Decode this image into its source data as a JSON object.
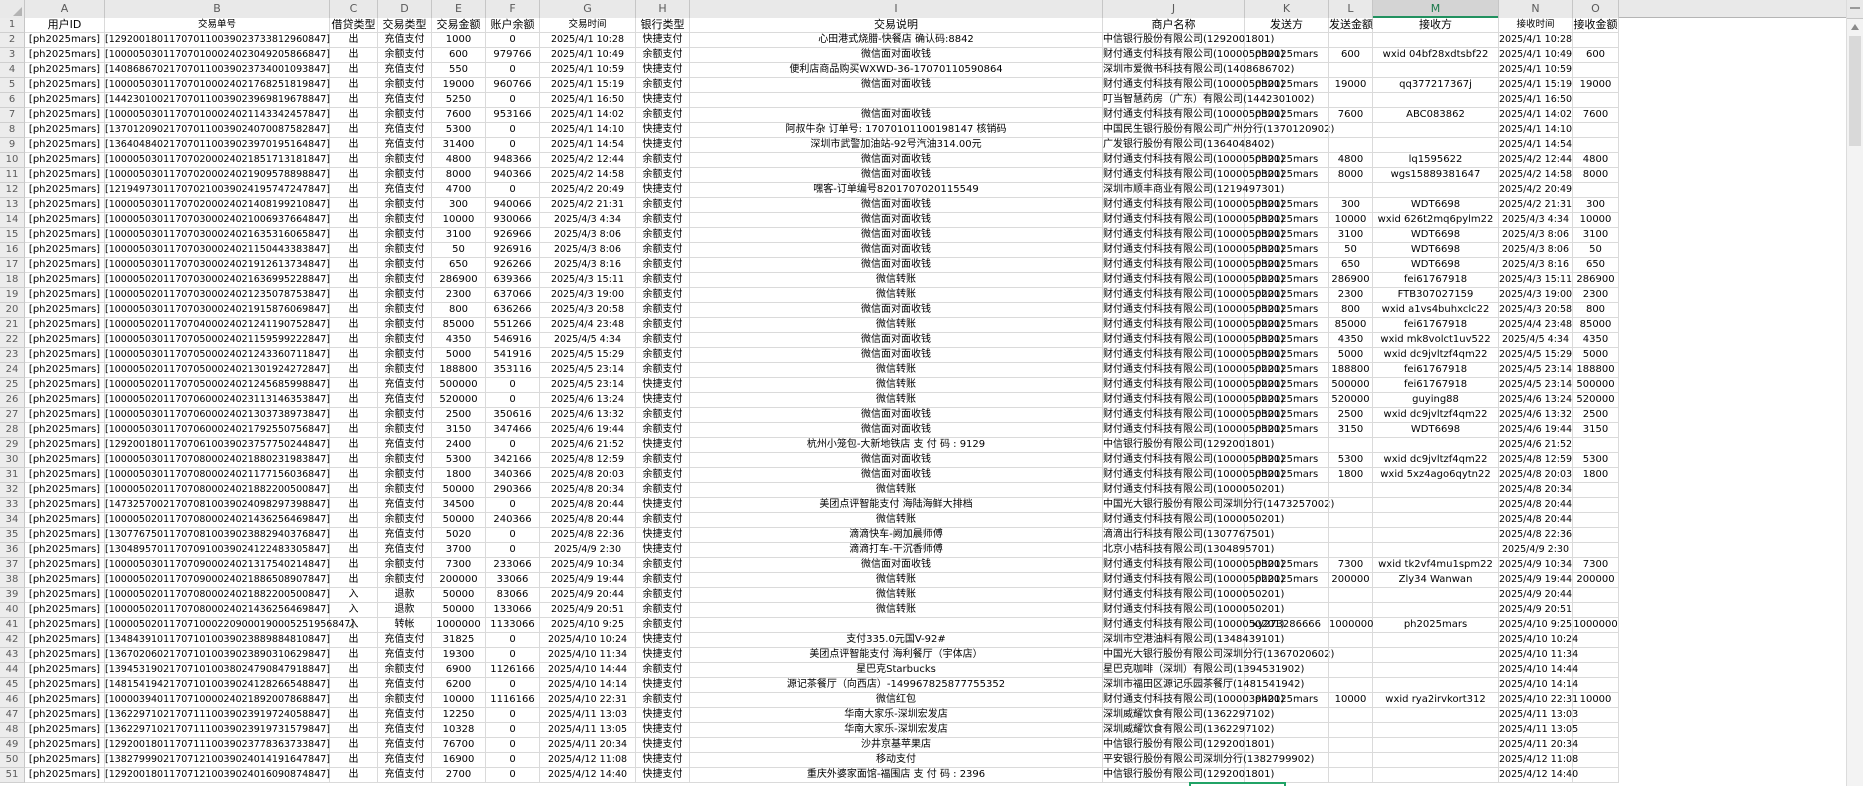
{
  "sheet": {
    "column_letters": [
      "A",
      "B",
      "C",
      "D",
      "E",
      "F",
      "G",
      "H",
      "I",
      "J",
      "K",
      "L",
      "M",
      "N",
      "O"
    ],
    "selected_column_letter": "M",
    "first_row_number": 1,
    "field_headers": [
      "用户ID",
      "交易单号",
      "借贷类型",
      "交易类型",
      "交易金额",
      "账户余额",
      "交易时间",
      "银行类型",
      "交易说明",
      "商户名称",
      "发送方",
      "发送金额",
      "接收方",
      "接收时间",
      "接收金额"
    ],
    "rows": [
      [
        "[ph2025mars]",
        "[129200180117070110039023733812960847]",
        "出",
        "充值支付",
        "1000",
        "0",
        "2025/4/1 10:28",
        "快捷支付",
        "心田港式烧腊-快餐店 确认码:8842",
        "中信银行股份有限公司(1292001801)",
        "",
        "",
        "",
        "2025/4/1 10:28",
        ""
      ],
      [
        "[ph2025mars]",
        "[100005030117070100024023049205866847]",
        "出",
        "余额支付",
        "600",
        "979766",
        "2025/4/1 10:49",
        "余额支付",
        "微信面对面收钱",
        "财付通支付科技有限公司(1000050301)",
        "ph2025mars",
        "600",
        "wxid 04bf28xdtsbf22",
        "2025/4/1 10:49",
        "600"
      ],
      [
        "[ph2025mars]",
        "[140868670217070110039023734001093847]",
        "出",
        "充值支付",
        "550",
        "0",
        "2025/4/1 10:59",
        "快捷支付",
        "便利店商品购买WXWD-36-17070110590864",
        "深圳市爱微书科技有限公司(1408686702)",
        "",
        "",
        "",
        "2025/4/1 10:59",
        ""
      ],
      [
        "[ph2025mars]",
        "[100005030117070100024021768251819847]",
        "出",
        "余额支付",
        "19000",
        "960766",
        "2025/4/1 15:19",
        "余额支付",
        "微信面对面收钱",
        "财付通支付科技有限公司(1000050301)",
        "ph2025mars",
        "19000",
        "qq377217367j",
        "2025/4/1 15:19",
        "19000"
      ],
      [
        "[ph2025mars]",
        "[144230100217070110039023969819678847]",
        "出",
        "充值支付",
        "5250",
        "0",
        "2025/4/1 16:50",
        "快捷支付",
        "",
        "叮当智慧药房（广东）有限公司(1442301002)",
        "",
        "",
        "",
        "2025/4/1 16:50",
        ""
      ],
      [
        "[ph2025mars]",
        "[100005030117070100024021143342457847]",
        "出",
        "余额支付",
        "7600",
        "953166",
        "2025/4/1 14:02",
        "余额支付",
        "微信面对面收钱",
        "财付通支付科技有限公司(1000050301)",
        "ph2025mars",
        "7600",
        "ABC083862",
        "2025/4/1 14:02",
        "7600"
      ],
      [
        "[ph2025mars]",
        "[137012090217070110039024070087582847]",
        "出",
        "充值支付",
        "5300",
        "0",
        "2025/4/1 14:10",
        "快捷支付",
        "阿叔牛杂 订单号: 17070101100198147 核销码",
        "中国民生银行股份有限公司广州分行(1370120902)",
        "",
        "",
        "",
        "2025/4/1 14:10",
        ""
      ],
      [
        "[ph2025mars]",
        "[136404840217070110039023970195164847]",
        "出",
        "充值支付",
        "31400",
        "0",
        "2025/4/1 14:54",
        "快捷支付",
        "深圳市武警加油站-92号汽油314.00元",
        "广发银行股份有限公司(1364048402)",
        "",
        "",
        "",
        "2025/4/1 14:54",
        ""
      ],
      [
        "[ph2025mars]",
        "[100005030117070200024021851713181847]",
        "出",
        "余额支付",
        "4800",
        "948366",
        "2025/4/2 12:44",
        "余额支付",
        "微信面对面收钱",
        "财付通支付科技有限公司(1000050301)",
        "ph2025mars",
        "4800",
        "lq1595622",
        "2025/4/2 12:44",
        "4800"
      ],
      [
        "[ph2025mars]",
        "[100005030117070200024021909578898847]",
        "出",
        "余额支付",
        "8000",
        "940366",
        "2025/4/2 14:58",
        "余额支付",
        "微信面对面收钱",
        "财付通支付科技有限公司(1000050301)",
        "ph2025mars",
        "8000",
        "wgs15889381647",
        "2025/4/2 14:58",
        "8000"
      ],
      [
        "[ph2025mars]",
        "[121949730117070210039024195747247847]",
        "出",
        "充值支付",
        "4700",
        "0",
        "2025/4/2 20:49",
        "快捷支付",
        "嘿客-订单编号8201707020115549",
        "深圳市顺丰商业有限公司(1219497301)",
        "",
        "",
        "",
        "2025/4/2 20:49",
        ""
      ],
      [
        "[ph2025mars]",
        "[100005030117070200024021408199210847]",
        "出",
        "余额支付",
        "300",
        "940066",
        "2025/4/2 21:31",
        "余额支付",
        "微信面对面收钱",
        "财付通支付科技有限公司(1000050301)",
        "ph2025mars",
        "300",
        "WDT6698",
        "2025/4/2 21:31",
        "300"
      ],
      [
        "[ph2025mars]",
        "[100005030117070300024021006937664847]",
        "出",
        "余额支付",
        "10000",
        "930066",
        "2025/4/3 4:34",
        "余额支付",
        "微信面对面收钱",
        "财付通支付科技有限公司(1000050301)",
        "ph2025mars",
        "10000",
        "wxid 626t2mq6pylm22",
        "2025/4/3 4:34",
        "10000"
      ],
      [
        "[ph2025mars]",
        "[100005030117070300024021635316065847]",
        "出",
        "余额支付",
        "3100",
        "926966",
        "2025/4/3 8:06",
        "余额支付",
        "微信面对面收钱",
        "财付通支付科技有限公司(1000050301)",
        "ph2025mars",
        "3100",
        "WDT6698",
        "2025/4/3 8:06",
        "3100"
      ],
      [
        "[ph2025mars]",
        "[100005030117070300024021150443383847]",
        "出",
        "余额支付",
        "50",
        "926916",
        "2025/4/3 8:06",
        "余额支付",
        "微信面对面收钱",
        "财付通支付科技有限公司(1000050301)",
        "ph2025mars",
        "50",
        "WDT6698",
        "2025/4/3 8:06",
        "50"
      ],
      [
        "[ph2025mars]",
        "[100005030117070300024021912613734847]",
        "出",
        "余额支付",
        "650",
        "926266",
        "2025/4/3 8:16",
        "余额支付",
        "微信面对面收钱",
        "财付通支付科技有限公司(1000050301)",
        "ph2025mars",
        "650",
        "WDT6698",
        "2025/4/3 8:16",
        "650"
      ],
      [
        "[ph2025mars]",
        "[100005020117070300024021636995228847]",
        "出",
        "余额支付",
        "286900",
        "639366",
        "2025/4/3 15:11",
        "余额支付",
        "微信转账",
        "财付通支付科技有限公司(1000050201)",
        "ph2025mars",
        "286900",
        "fei61767918",
        "2025/4/3 15:11",
        "286900"
      ],
      [
        "[ph2025mars]",
        "[100005020117070300024021235078753847]",
        "出",
        "余额支付",
        "2300",
        "637066",
        "2025/4/3 19:00",
        "余额支付",
        "微信转账",
        "财付通支付科技有限公司(1000050201)",
        "ph2025mars",
        "2300",
        "FTB307027159",
        "2025/4/3 19:00",
        "2300"
      ],
      [
        "[ph2025mars]",
        "[100005030117070300024021915876069847]",
        "出",
        "余额支付",
        "800",
        "636266",
        "2025/4/3 20:58",
        "余额支付",
        "微信面对面收钱",
        "财付通支付科技有限公司(1000050301)",
        "ph2025mars",
        "800",
        "wxid a1vs4buhxclc22",
        "2025/4/3 20:58",
        "800"
      ],
      [
        "[ph2025mars]",
        "[100005020117070400024021241190752847]",
        "出",
        "余额支付",
        "85000",
        "551266",
        "2025/4/4 23:48",
        "余额支付",
        "微信转账",
        "财付通支付科技有限公司(1000050201)",
        "ph2025mars",
        "85000",
        "fei61767918",
        "2025/4/4 23:48",
        "85000"
      ],
      [
        "[ph2025mars]",
        "[100005030117070500024021159599222847]",
        "出",
        "余额支付",
        "4350",
        "546916",
        "2025/4/5 4:34",
        "余额支付",
        "微信面对面收钱",
        "财付通支付科技有限公司(1000050301)",
        "ph2025mars",
        "4350",
        "wxid mk8volct1uv522",
        "2025/4/5 4:34",
        "4350"
      ],
      [
        "[ph2025mars]",
        "[100005030117070500024021243360711847]",
        "出",
        "余额支付",
        "5000",
        "541916",
        "2025/4/5 15:29",
        "余额支付",
        "微信面对面收钱",
        "财付通支付科技有限公司(1000050301)",
        "ph2025mars",
        "5000",
        "wxid dc9jvltzf4qm22",
        "2025/4/5 15:29",
        "5000"
      ],
      [
        "[ph2025mars]",
        "[100005020117070500024021301924272847]",
        "出",
        "余额支付",
        "188800",
        "353116",
        "2025/4/5 23:14",
        "余额支付",
        "微信转账",
        "财付通支付科技有限公司(1000050201)",
        "ph2025mars",
        "188800",
        "fei61767918",
        "2025/4/5 23:14",
        "188800"
      ],
      [
        "[ph2025mars]",
        "[100005020117070500024021245685998847]",
        "出",
        "充值支付",
        "500000",
        "0",
        "2025/4/5 23:14",
        "快捷支付",
        "微信转账",
        "财付通支付科技有限公司(1000050201)",
        "ph2025mars",
        "500000",
        "fei61767918",
        "2025/4/5 23:14",
        "500000"
      ],
      [
        "[ph2025mars]",
        "[100005020117070600024023113146353847]",
        "出",
        "充值支付",
        "520000",
        "0",
        "2025/4/6 13:24",
        "快捷支付",
        "微信转账",
        "财付通支付科技有限公司(1000050201)",
        "ph2025mars",
        "520000",
        "guying88",
        "2025/4/6 13:24",
        "520000"
      ],
      [
        "[ph2025mars]",
        "[100005030117070600024021303738973847]",
        "出",
        "余额支付",
        "2500",
        "350616",
        "2025/4/6 13:32",
        "余额支付",
        "微信面对面收钱",
        "财付通支付科技有限公司(1000050301)",
        "ph2025mars",
        "2500",
        "wxid dc9jvltzf4qm22",
        "2025/4/6 13:32",
        "2500"
      ],
      [
        "[ph2025mars]",
        "[100005030117070600024021792550756847]",
        "出",
        "余额支付",
        "3150",
        "347466",
        "2025/4/6 19:44",
        "余额支付",
        "微信面对面收钱",
        "财付通支付科技有限公司(1000050301)",
        "ph2025mars",
        "3150",
        "WDT6698",
        "2025/4/6 19:44",
        "3150"
      ],
      [
        "[ph2025mars]",
        "[129200180117070610039023757750244847]",
        "出",
        "充值支付",
        "2400",
        "0",
        "2025/4/6 21:52",
        "快捷支付",
        "杭州小笼包-大新地铁店 支 付 码 : 9129",
        "中信银行股份有限公司(1292001801)",
        "",
        "",
        "",
        "2025/4/6 21:52",
        ""
      ],
      [
        "[ph2025mars]",
        "[100005030117070800024021880231983847]",
        "出",
        "余额支付",
        "5300",
        "342166",
        "2025/4/8 12:59",
        "余额支付",
        "微信面对面收钱",
        "财付通支付科技有限公司(1000050301)",
        "ph2025mars",
        "5300",
        "wxid dc9jvltzf4qm22",
        "2025/4/8 12:59",
        "5300"
      ],
      [
        "[ph2025mars]",
        "[100005030117070800024021177156036847]",
        "出",
        "余额支付",
        "1800",
        "340366",
        "2025/4/8 20:03",
        "余额支付",
        "微信面对面收钱",
        "财付通支付科技有限公司(1000050301)",
        "ph2025mars",
        "1800",
        "wxid 5xz4ago6qytn22",
        "2025/4/8 20:03",
        "1800"
      ],
      [
        "[ph2025mars]",
        "[100005020117070800024021882200500847]",
        "出",
        "余额支付",
        "50000",
        "290366",
        "2025/4/8 20:34",
        "余额支付",
        "微信转账",
        "财付通支付科技有限公司(1000050201)",
        "",
        "",
        "",
        "2025/4/8 20:34",
        ""
      ],
      [
        "[ph2025mars]",
        "[147325700217070810039024098297398847]",
        "出",
        "充值支付",
        "34500",
        "0",
        "2025/4/8 20:44",
        "快捷支付",
        "美团点评智能支付 海陆海鲜大排档",
        "中国光大银行股份有限公司深圳分行(1473257002)",
        "",
        "",
        "",
        "2025/4/8 20:44",
        ""
      ],
      [
        "[ph2025mars]",
        "[100005020117070800024021436256469847]",
        "出",
        "余额支付",
        "50000",
        "240366",
        "2025/4/8 20:44",
        "余额支付",
        "微信转账",
        "财付通支付科技有限公司(1000050201)",
        "",
        "",
        "",
        "2025/4/8 20:44",
        ""
      ],
      [
        "[ph2025mars]",
        "[130776750117070810039023882940376847]",
        "出",
        "充值支付",
        "5020",
        "0",
        "2025/4/8 22:36",
        "快捷支付",
        "滴滴快车-阙加晨师傅",
        "滴滴出行科技有限公司(1307767501)",
        "",
        "",
        "",
        "2025/4/8 22:36",
        ""
      ],
      [
        "[ph2025mars]",
        "[130489570117070910039024122483305847]",
        "出",
        "充值支付",
        "3700",
        "0",
        "2025/4/9 2:30",
        "快捷支付",
        "滴滴打车-干沉香师傅",
        "北京小桔科技有限公司(1304895701)",
        "",
        "",
        "",
        "2025/4/9 2:30",
        ""
      ],
      [
        "[ph2025mars]",
        "[100005030117070900024021317540214847]",
        "出",
        "余额支付",
        "7300",
        "233066",
        "2025/4/9 10:34",
        "余额支付",
        "微信面对面收钱",
        "财付通支付科技有限公司(1000050301)",
        "ph2025mars",
        "7300",
        "wxid tk2vf4mu1spm22",
        "2025/4/9 10:34",
        "7300"
      ],
      [
        "[ph2025mars]",
        "[100005020117070900024021886508907847]",
        "出",
        "余额支付",
        "200000",
        "33066",
        "2025/4/9 19:44",
        "余额支付",
        "微信转账",
        "财付通支付科技有限公司(1000050201)",
        "ph2025mars",
        "200000",
        "Zly34 Wanwan",
        "2025/4/9 19:44",
        "200000"
      ],
      [
        "[ph2025mars]",
        "[100005020117070800024021882200500847]",
        "入",
        "退款",
        "50000",
        "83066",
        "2025/4/9 20:44",
        "余额支付",
        "微信转账",
        "财付通支付科技有限公司(1000050201)",
        "",
        "",
        "",
        "2025/4/9 20:44",
        ""
      ],
      [
        "[ph2025mars]",
        "[100005020117070800024021436256469847]",
        "入",
        "退款",
        "50000",
        "133066",
        "2025/4/9 20:51",
        "余额支付",
        "微信转账",
        "财付通支付科技有限公司(1000050201)",
        "",
        "",
        "",
        "2025/4/9 20:51",
        ""
      ],
      [
        "[ph2025mars]",
        "[1000050201170710002209000190005251956847]",
        "入",
        "转帐",
        "1000000",
        "1133066",
        "2025/4/10 9:25",
        "余额支付",
        "",
        "财付通支付科技有限公司(1000050201)",
        "xy273286666",
        "1000000",
        "ph2025mars",
        "2025/4/10 9:25",
        "1000000"
      ],
      [
        "[ph2025mars]",
        "[134843910117071010039023889884810847]",
        "出",
        "充值支付",
        "31825",
        "0",
        "2025/4/10 10:24",
        "快捷支付",
        "支付335.0元国V-92#",
        "深圳市空港油料有限公司(1348439101)",
        "",
        "",
        "",
        "2025/4/10 10:24",
        ""
      ],
      [
        "[ph2025mars]",
        "[136702060217071010039023890310629847]",
        "出",
        "充值支付",
        "19300",
        "0",
        "2025/4/10 11:34",
        "快捷支付",
        "美团点评智能支付 海利餐厅（宇体店）",
        "中国光大银行股份有限公司深圳分行(1367020602)",
        "",
        "",
        "",
        "2025/4/10 11:34",
        ""
      ],
      [
        "[ph2025mars]",
        "[139453190217071010038024790847918847]",
        "出",
        "余额支付",
        "6900",
        "1126166",
        "2025/4/10 14:44",
        "余额支付",
        "星巴克Starbucks",
        "星巴克咖啡（深圳）有限公司(1394531902)",
        "",
        "",
        "",
        "2025/4/10 14:44",
        ""
      ],
      [
        "[ph2025mars]",
        "[148154194217071010039024128266548847]",
        "出",
        "充值支付",
        "6200",
        "0",
        "2025/4/10 14:14",
        "快捷支付",
        "源记茶餐厅（向西店）-149967825877755352",
        "深圳市福田区源记乐园茶餐厅(1481541942)",
        "",
        "",
        "",
        "2025/4/10 14:14",
        ""
      ],
      [
        "[ph2025mars]",
        "[100003940117071000024021892007868847]",
        "出",
        "余额支付",
        "10000",
        "1116166",
        "2025/4/10 22:31",
        "余额支付",
        "微信红包",
        "财付通支付科技有限公司(1000039401)",
        "ph2025mars",
        "10000",
        "wxid rya2irvkort312",
        "2025/4/10 22:31",
        "10000"
      ],
      [
        "[ph2025mars]",
        "[136229710217071110039023919724058847]",
        "出",
        "充值支付",
        "12250",
        "0",
        "2025/4/11 13:03",
        "快捷支付",
        "华南大家乐-深圳宏发店",
        "深圳威耀饮食有限公司(1362297102)",
        "",
        "",
        "",
        "2025/4/11 13:03",
        ""
      ],
      [
        "[ph2025mars]",
        "[136229710217071110039023919731579847]",
        "出",
        "充值支付",
        "10328",
        "0",
        "2025/4/11 13:05",
        "快捷支付",
        "华南大家乐-深圳宏发店",
        "深圳威耀饮食有限公司(1362297102)",
        "",
        "",
        "",
        "2025/4/11 13:05",
        ""
      ],
      [
        "[ph2025mars]",
        "[129200180117071110039023778363733847]",
        "出",
        "充值支付",
        "76700",
        "0",
        "2025/4/11 20:34",
        "快捷支付",
        "沙井京基苹果店",
        "中信银行股份有限公司(1292001801)",
        "",
        "",
        "",
        "2025/4/11 20:34",
        ""
      ],
      [
        "[ph2025mars]",
        "[138279990217071210039024014191647847]",
        "出",
        "充值支付",
        "16900",
        "0",
        "2025/4/12 11:08",
        "快捷支付",
        "移动支付",
        "平安银行股份有限公司深圳分行(1382799902)",
        "",
        "",
        "",
        "2025/4/12 11:08",
        ""
      ],
      [
        "[ph2025mars]",
        "[129200180117071210039024016090874847]",
        "出",
        "充值支付",
        "2700",
        "0",
        "2025/4/12 14:40",
        "快捷支付",
        "重庆外婆家面馆-福围店 支 付 码 : 2396",
        "中信银行股份有限公司(1292001801)",
        "",
        "",
        "",
        "2025/4/12 14:40",
        ""
      ]
    ]
  },
  "colors": {
    "selection_green": "#21a366",
    "header_background": "#e9e9e9",
    "selected_header_background": "#d4d4d4",
    "grid_line": "#dadada"
  }
}
